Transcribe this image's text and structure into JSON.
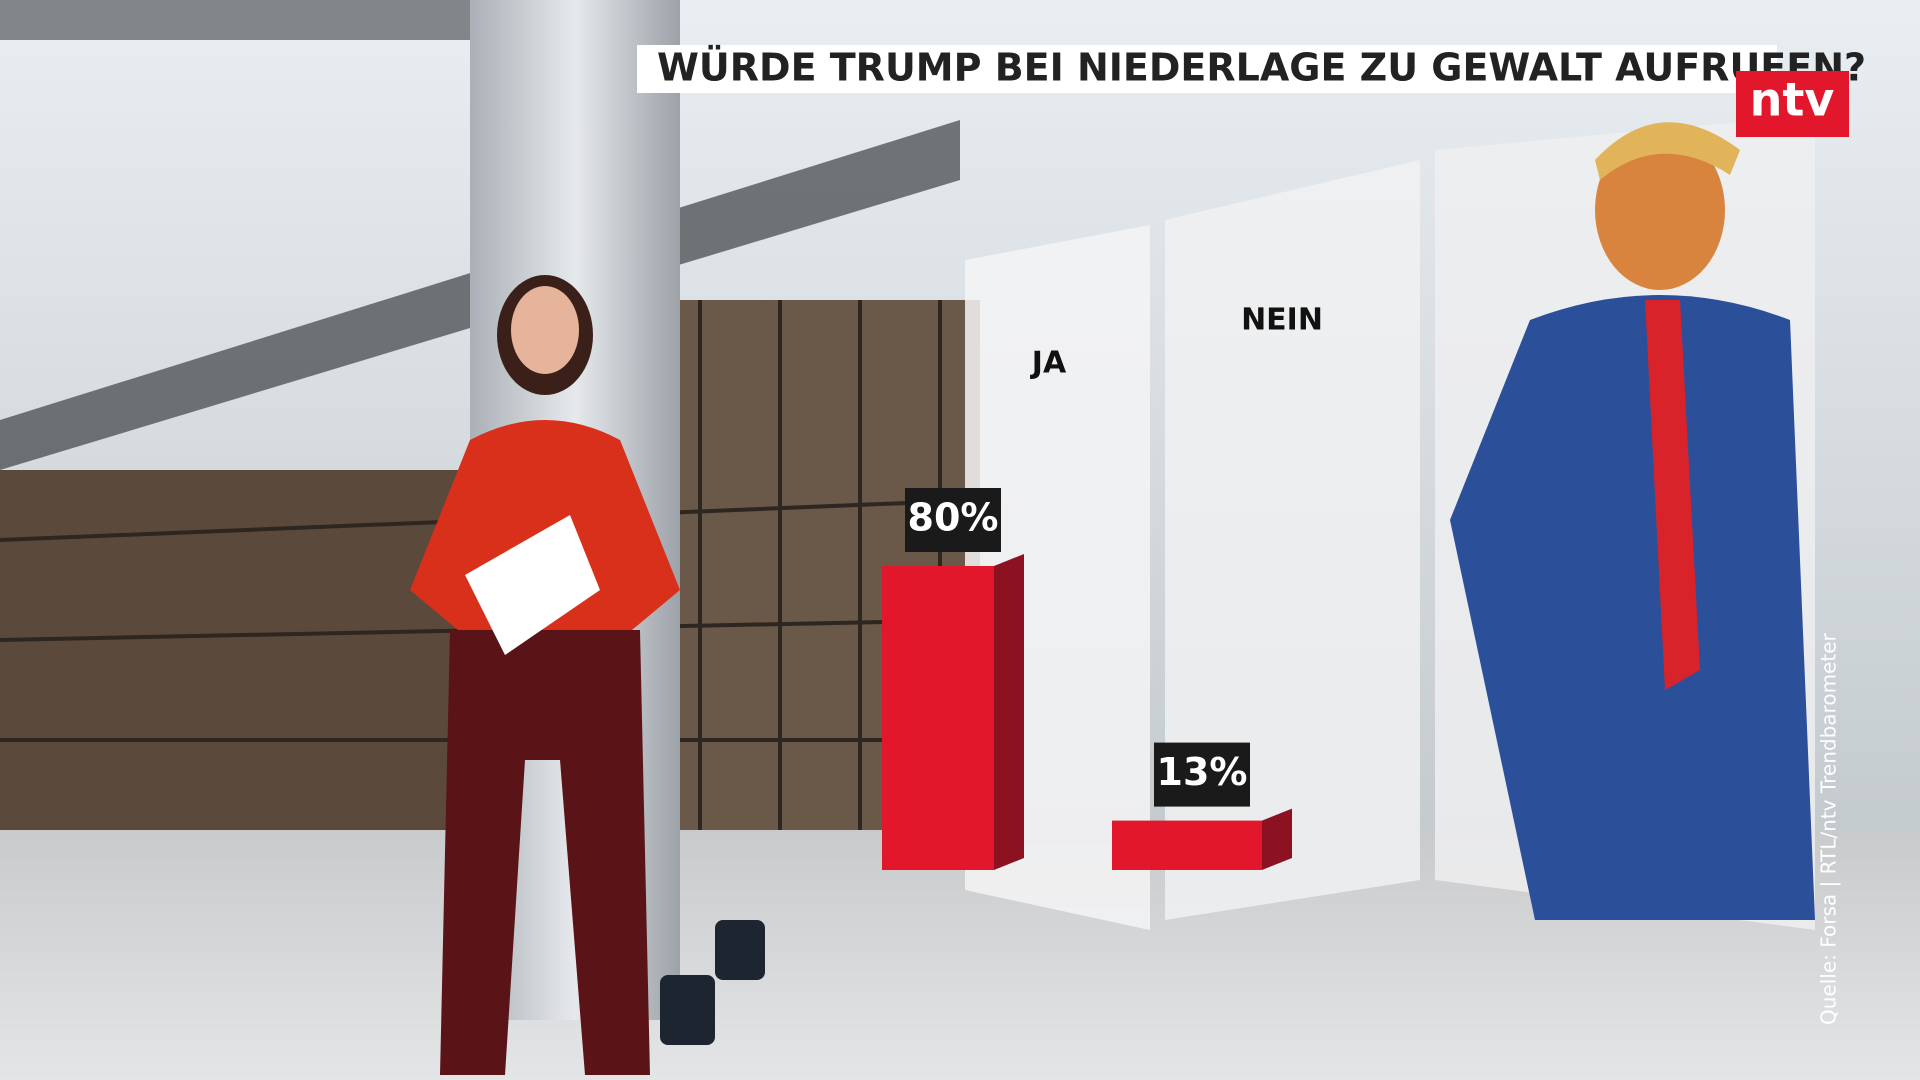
{
  "chart_data": {
    "type": "bar",
    "title": "WÜRDE TRUMP BEI NIEDERLAGE ZU GEWALT AUFRUFEN?",
    "categories": [
      "JA",
      "NEIN"
    ],
    "values": [
      80,
      13
    ],
    "value_labels": [
      "80%",
      "13%"
    ],
    "color": "#e3172b",
    "source": "Quelle: Forsa | RTL/ntv Trendbarometer"
  },
  "logo": "ntv"
}
